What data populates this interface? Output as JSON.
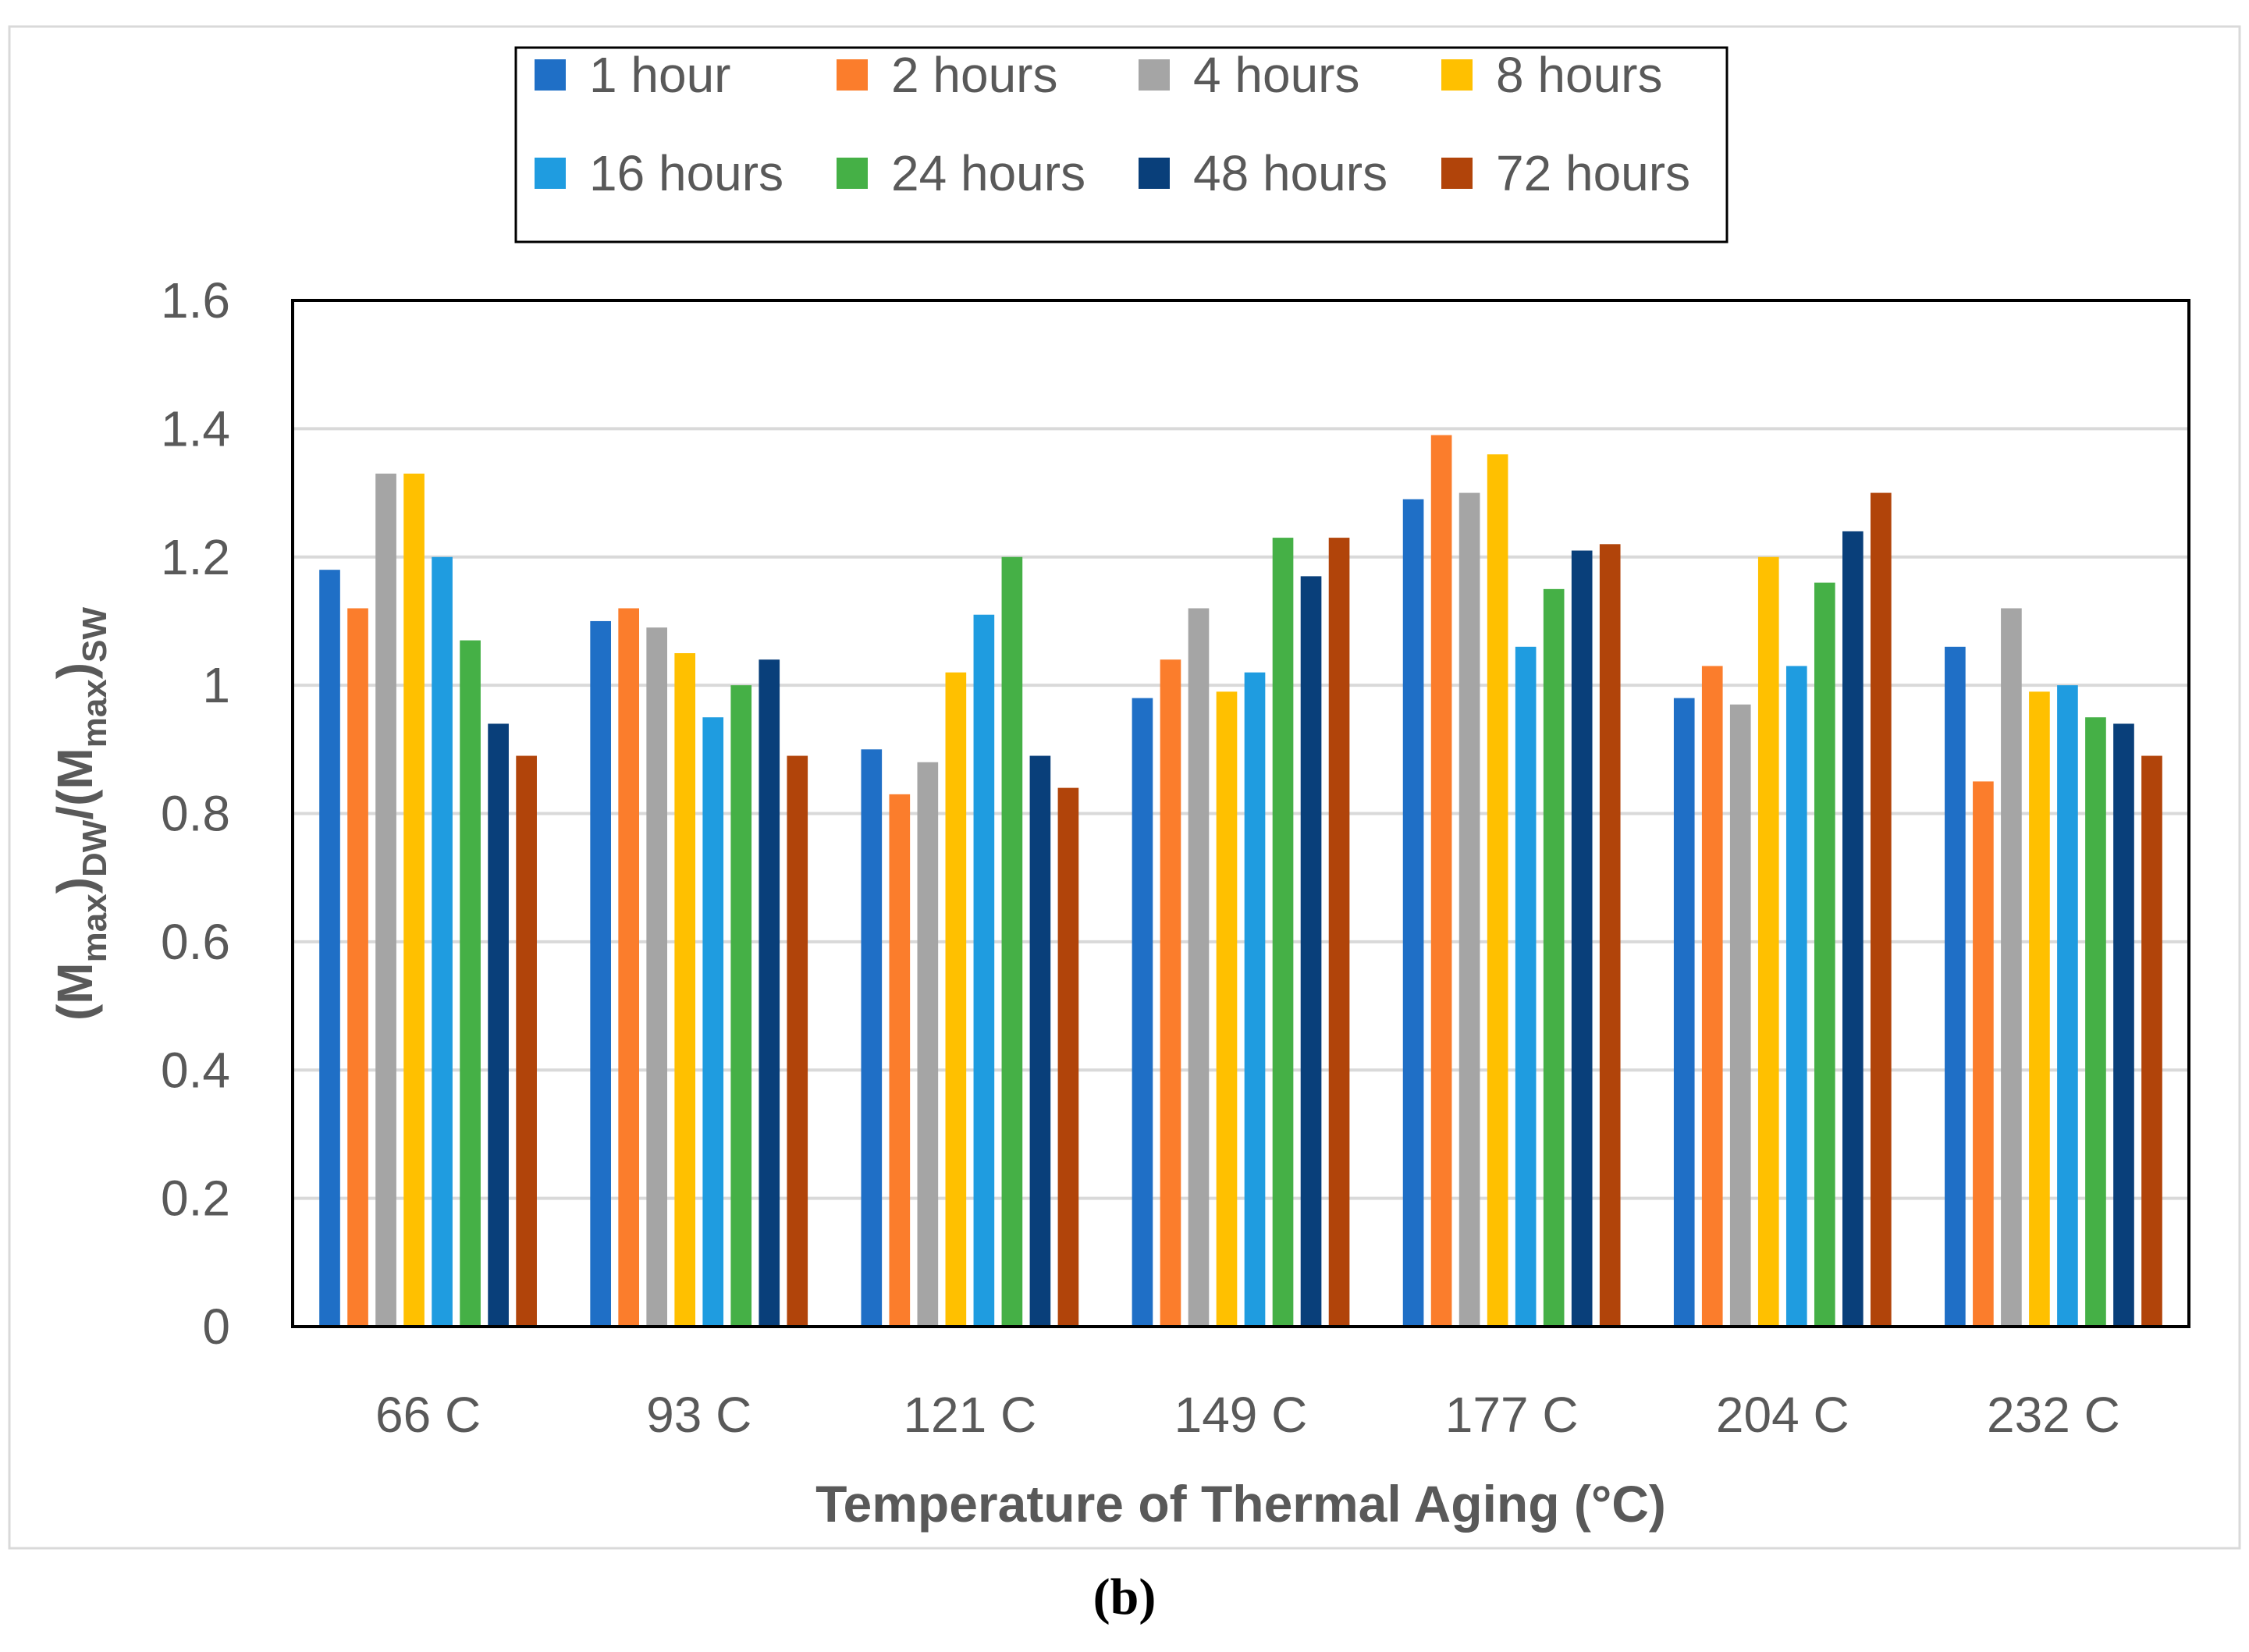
{
  "chart_data": {
    "type": "bar",
    "title": "",
    "xlabel": "Temperature of Thermal Aging (°C)",
    "ylabel": {
      "prefix": "(M",
      "sub1": "max",
      "mid1": ")",
      "sub2": "DW",
      "mid2": "/(M",
      "sub3": "max",
      "mid3": ")",
      "sub4": "SW"
    },
    "ylim": [
      0,
      1.6
    ],
    "yticks": [
      0,
      0.2,
      0.4,
      0.6,
      0.8,
      1,
      1.2,
      1.4,
      1.6
    ],
    "ytick_labels": [
      "0",
      "0.2",
      "0.4",
      "0.6",
      "0.8",
      "1",
      "1.2",
      "1.4",
      "1.6"
    ],
    "grid": true,
    "legend_position": "top",
    "categories": [
      "66 C",
      "93 C",
      "121 C",
      "149 C",
      "177 C",
      "204 C",
      "232 C"
    ],
    "series": [
      {
        "name": "1 hour",
        "color": "#1f6fc6",
        "values": [
          1.18,
          1.1,
          0.9,
          0.98,
          1.29,
          0.98,
          1.06
        ]
      },
      {
        "name": "2 hours",
        "color": "#fb7d2c",
        "values": [
          1.12,
          1.12,
          0.83,
          1.04,
          1.39,
          1.03,
          0.85
        ]
      },
      {
        "name": "4 hours",
        "color": "#a5a5a5",
        "values": [
          1.33,
          1.09,
          0.88,
          1.12,
          1.3,
          0.97,
          1.12
        ]
      },
      {
        "name": "8 hours",
        "color": "#ffc000",
        "values": [
          1.33,
          1.05,
          1.02,
          0.99,
          1.36,
          1.2,
          0.99
        ]
      },
      {
        "name": "16 hours",
        "color": "#1f9ce0",
        "values": [
          1.2,
          0.95,
          1.11,
          1.02,
          1.06,
          1.03,
          1.0
        ]
      },
      {
        "name": "24 hours",
        "color": "#45b046",
        "values": [
          1.07,
          1.0,
          1.2,
          1.23,
          1.15,
          1.16,
          0.95
        ]
      },
      {
        "name": "48 hours",
        "color": "#093f7a",
        "values": [
          0.94,
          1.04,
          0.89,
          1.17,
          1.21,
          1.24,
          0.94
        ]
      },
      {
        "name": "72 hours",
        "color": "#b1440a",
        "values": [
          0.89,
          0.89,
          0.84,
          1.23,
          1.22,
          1.3,
          0.89
        ]
      }
    ]
  },
  "caption": {
    "open": "(",
    "letter": "b",
    "close": ")"
  }
}
